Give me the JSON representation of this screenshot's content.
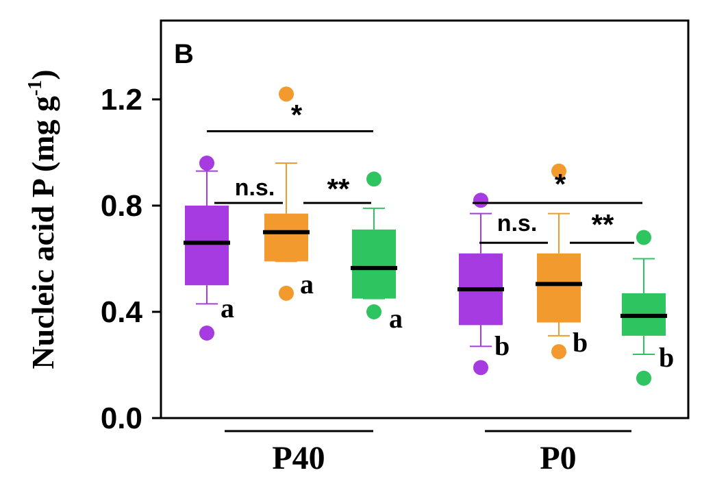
{
  "chart_data": {
    "type": "box",
    "panel_label": "B",
    "ylabel": "Nucleic acid P (mg g",
    "ylabel_sup": "-1",
    "ylabel_close": ")",
    "ylim": [
      0.0,
      1.2
    ],
    "yticks": [
      "0.0",
      "0.4",
      "0.8",
      "1.2"
    ],
    "groups": [
      "P40",
      "P0"
    ],
    "series_colors": [
      "#A53BE0",
      "#F39A2E",
      "#2EC45F"
    ],
    "boxes": [
      {
        "group": "P40",
        "color": "#A53BE0",
        "whisker_low": 0.43,
        "q1": 0.5,
        "median": 0.66,
        "q3": 0.8,
        "whisker_high": 0.93,
        "outliers": [
          0.96,
          0.32
        ],
        "letter": "a"
      },
      {
        "group": "P40",
        "color": "#F39A2E",
        "whisker_low": 0.59,
        "q1": 0.59,
        "median": 0.7,
        "q3": 0.77,
        "whisker_high": 0.96,
        "outliers": [
          1.22,
          0.47
        ],
        "letter": "a"
      },
      {
        "group": "P40",
        "color": "#2EC45F",
        "whisker_low": 0.45,
        "q1": 0.45,
        "median": 0.565,
        "q3": 0.71,
        "whisker_high": 0.79,
        "outliers": [
          0.9,
          0.4
        ],
        "letter": "a"
      },
      {
        "group": "P0",
        "color": "#A53BE0",
        "whisker_low": 0.27,
        "q1": 0.35,
        "median": 0.485,
        "q3": 0.62,
        "whisker_high": 0.77,
        "outliers": [
          0.82,
          0.19
        ],
        "letter": "b"
      },
      {
        "group": "P0",
        "color": "#F39A2E",
        "whisker_low": 0.31,
        "q1": 0.36,
        "median": 0.505,
        "q3": 0.62,
        "whisker_high": 0.77,
        "outliers": [
          0.93,
          0.25
        ],
        "letter": "b"
      },
      {
        "group": "P0",
        "color": "#2EC45F",
        "whisker_low": 0.24,
        "q1": 0.31,
        "median": 0.385,
        "q3": 0.47,
        "whisker_high": 0.6,
        "outliers": [
          0.68,
          0.15
        ],
        "letter": "b"
      }
    ],
    "comparisons": [
      {
        "from_box": 0,
        "to_box": 2,
        "y": 1.08,
        "label": "*"
      },
      {
        "from_box": 0,
        "to_box": 1,
        "y": 0.81,
        "label": "n.s."
      },
      {
        "from_box": 1,
        "to_box": 2,
        "y": 0.81,
        "label": "**"
      },
      {
        "from_box": 3,
        "to_box": 5,
        "y": 0.81,
        "label": "*"
      },
      {
        "from_box": 3,
        "to_box": 4,
        "y": 0.66,
        "label": "n.s."
      },
      {
        "from_box": 4,
        "to_box": 5,
        "y": 0.66,
        "label": "**"
      }
    ]
  }
}
